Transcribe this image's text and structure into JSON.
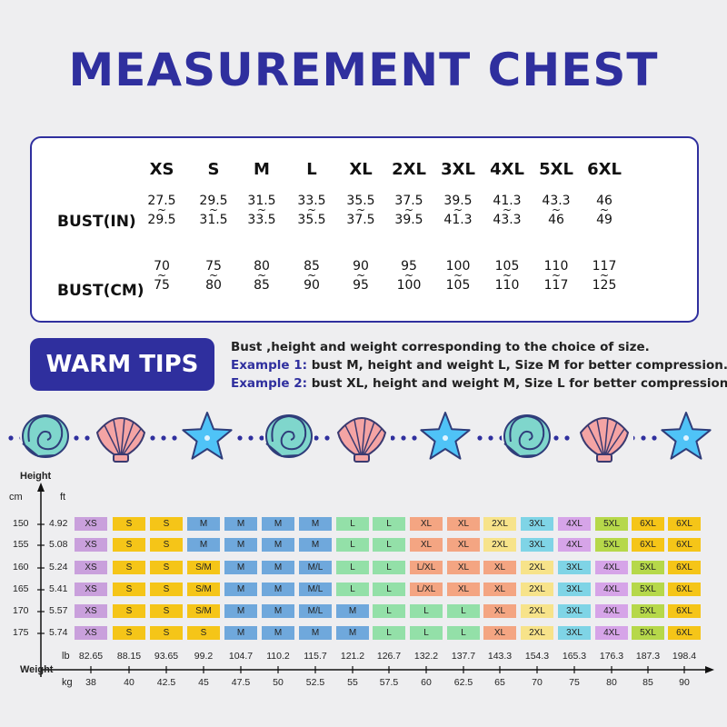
{
  "title": "MEASUREMENT CHEST",
  "chest_table": {
    "sizes": [
      "XS",
      "S",
      "M",
      "L",
      "XL",
      "2XL",
      "3XL",
      "4XL",
      "5XL",
      "6XL"
    ],
    "bust_in_label": "BUST(IN)",
    "bust_cm_label": "BUST(CM)",
    "bust_in": [
      [
        "27.5",
        "29.5"
      ],
      [
        "29.5",
        "31.5"
      ],
      [
        "31.5",
        "33.5"
      ],
      [
        "33.5",
        "35.5"
      ],
      [
        "35.5",
        "37.5"
      ],
      [
        "37.5",
        "39.5"
      ],
      [
        "39.5",
        "41.3"
      ],
      [
        "41.3",
        "43.3"
      ],
      [
        "43.3",
        "46"
      ],
      [
        "46",
        "49"
      ]
    ],
    "bust_cm": [
      [
        "70",
        "75"
      ],
      [
        "75",
        "80"
      ],
      [
        "80",
        "85"
      ],
      [
        "85",
        "90"
      ],
      [
        "90",
        "95"
      ],
      [
        "95",
        "100"
      ],
      [
        "100",
        "105"
      ],
      [
        "105",
        "110"
      ],
      [
        "110",
        "117"
      ],
      [
        "117",
        "125"
      ]
    ],
    "tilde": "~"
  },
  "tips": {
    "badge": "WARM TIPS",
    "line1": "Bust ,height and weight corresponding to the choice of size.",
    "ex1_label": "Example 1:",
    "ex1_text": " bust M, height and weight L, Size M for better compression.",
    "ex2_label": "Example 2:",
    "ex2_text": " bust XL, height and weight M, Size L for better compression."
  },
  "decoration": {
    "icons": [
      "shell-icon",
      "scallop-icon",
      "starfish-icon",
      "shell-icon",
      "scallop-icon",
      "starfish-icon",
      "shell-icon",
      "scallop-icon",
      "starfish-icon"
    ]
  },
  "size_grid": {
    "height_label": "Height",
    "cm_label": "cm",
    "ft_label": "ft",
    "weight_label": "Weight",
    "lb_label": "lb",
    "kg_label": "kg",
    "heights_cm": [
      "150",
      "155",
      "160",
      "165",
      "170",
      "175"
    ],
    "heights_ft": [
      "4.92",
      "5.08",
      "5.24",
      "5.41",
      "5.57",
      "5.74"
    ],
    "weights_lb": [
      "82.65",
      "88.15",
      "93.65",
      "99.2",
      "104.7",
      "110.2",
      "115.7",
      "121.2",
      "126.7",
      "132.2",
      "137.7",
      "143.3",
      "154.3",
      "165.3",
      "176.3",
      "187.3",
      "198.4"
    ],
    "weights_kg": [
      "38",
      "40",
      "42.5",
      "45",
      "47.5",
      "50",
      "52.5",
      "55",
      "57.5",
      "60",
      "62.5",
      "65",
      "70",
      "75",
      "80",
      "85",
      "90"
    ],
    "rows": [
      [
        "XS",
        "S",
        "S",
        "M",
        "M",
        "M",
        "M",
        "L",
        "L",
        "XL",
        "XL",
        "2XL",
        "3XL",
        "4XL",
        "5XL",
        "6XL",
        "6XL"
      ],
      [
        "XS",
        "S",
        "S",
        "M",
        "M",
        "M",
        "M",
        "L",
        "L",
        "XL",
        "XL",
        "2XL",
        "3XL",
        "4XL",
        "5XL",
        "6XL",
        "6XL"
      ],
      [
        "XS",
        "S",
        "S",
        "S/M",
        "M",
        "M",
        "M/L",
        "L",
        "L",
        "L/XL",
        "XL",
        "XL",
        "2XL",
        "3XL",
        "4XL",
        "5XL",
        "6XL"
      ],
      [
        "XS",
        "S",
        "S",
        "S/M",
        "M",
        "M",
        "M/L",
        "L",
        "L",
        "L/XL",
        "XL",
        "XL",
        "2XL",
        "3XL",
        "4XL",
        "5XL",
        "6XL"
      ],
      [
        "XS",
        "S",
        "S",
        "S/M",
        "M",
        "M",
        "M/L",
        "M",
        "L",
        "L",
        "L",
        "XL",
        "2XL",
        "3XL",
        "4XL",
        "5XL",
        "6XL"
      ],
      [
        "XS",
        "S",
        "S",
        "S",
        "M",
        "M",
        "M",
        "M",
        "L",
        "L",
        "L",
        "XL",
        "2XL",
        "3XL",
        "4XL",
        "5XL",
        "6XL"
      ]
    ],
    "colors": {
      "XS": "#c9a0dc",
      "S": "#f5c518",
      "S/M": "#f5c518",
      "M": "#6fa8dc",
      "M/L": "#6fa8dc",
      "L": "#93e0a8",
      "L/XL": "#f4a582",
      "XL": "#f4a582",
      "2XL": "#f7e38a",
      "3XL": "#7fd4e6",
      "4XL": "#d6a4e8",
      "5XL": "#b6d84a",
      "6XL": "#f5c518"
    }
  }
}
